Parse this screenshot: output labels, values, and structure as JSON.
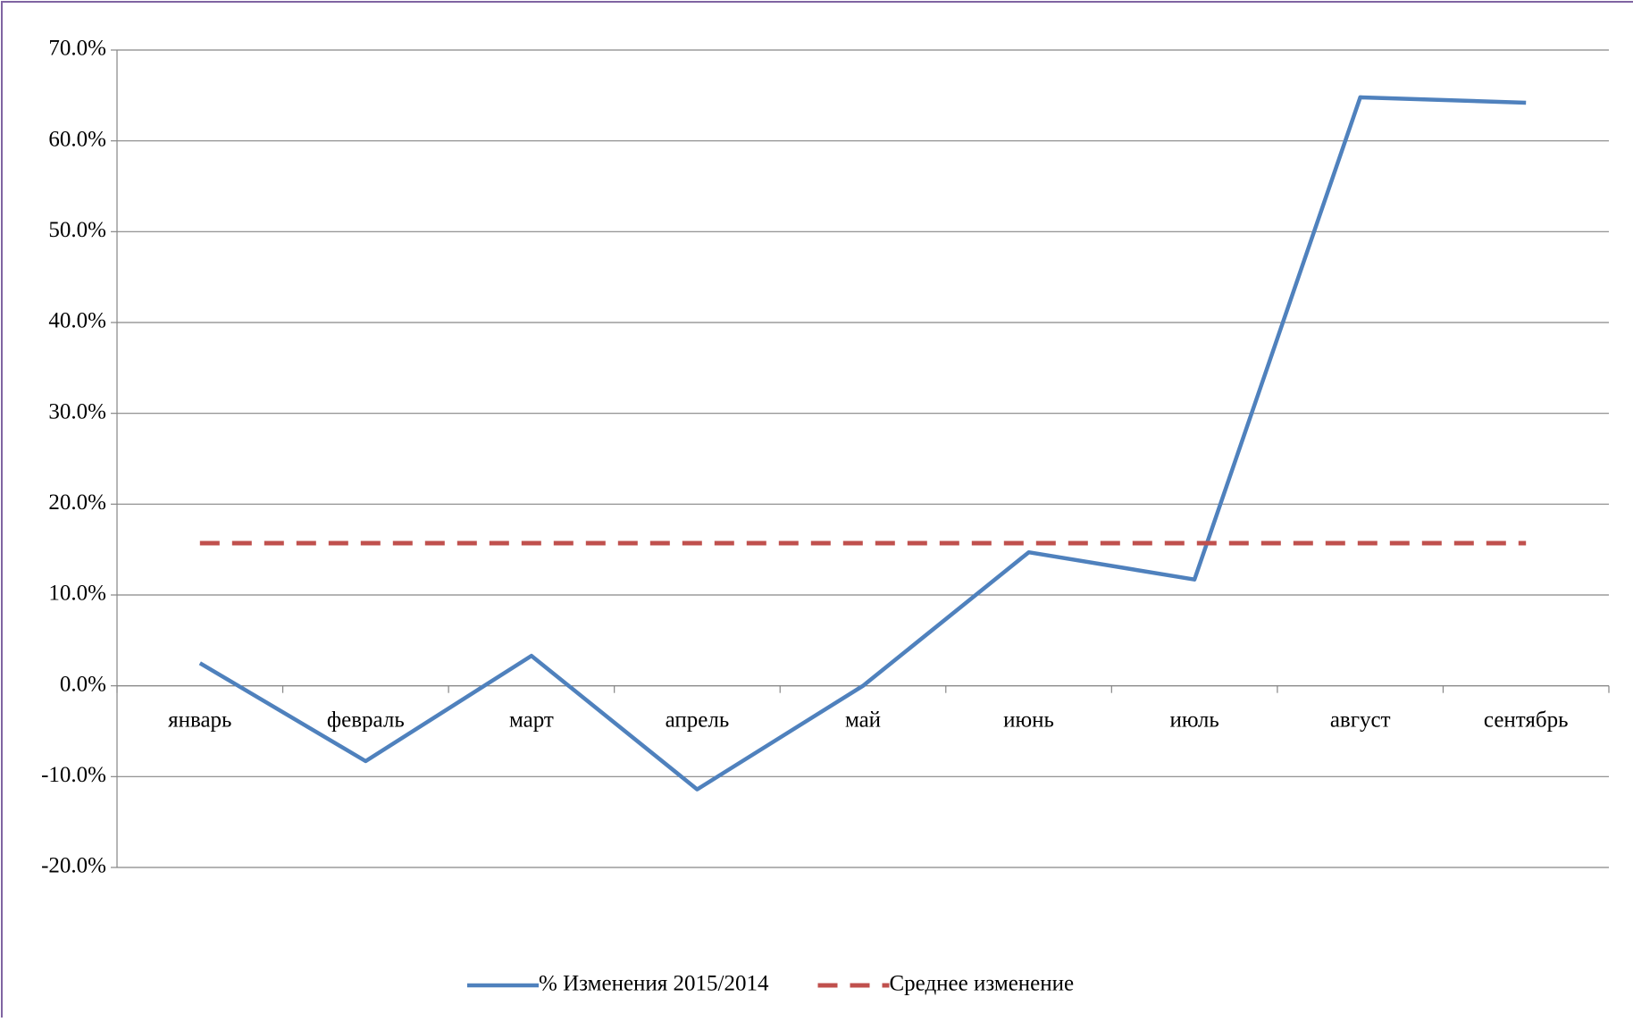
{
  "chart_data": {
    "type": "line",
    "categories": [
      "январь",
      "февраль",
      "март",
      "апрель",
      "май",
      "июнь",
      "июль",
      "август",
      "сентябрь"
    ],
    "series": [
      {
        "name": "% Изменения 2015/2014",
        "color": "#4f81bd",
        "values": [
          2.5,
          -8.3,
          3.3,
          -11.4,
          0.0,
          14.7,
          11.7,
          64.8,
          64.2
        ]
      },
      {
        "name": "Среднее изменение",
        "color": "#c0504d",
        "dashed": true,
        "values": [
          15.7,
          15.7,
          15.7,
          15.7,
          15.7,
          15.7,
          15.7,
          15.7,
          15.7
        ]
      }
    ],
    "ylim": [
      -20,
      70
    ],
    "yticks": [
      {
        "value": -20,
        "label": "-20.0%"
      },
      {
        "value": -10,
        "label": "-10.0%"
      },
      {
        "value": 0,
        "label": "0.0%"
      },
      {
        "value": 10,
        "label": "10.0%"
      },
      {
        "value": 20,
        "label": "20.0%"
      },
      {
        "value": 30,
        "label": "30.0%"
      },
      {
        "value": 40,
        "label": "40.0%"
      },
      {
        "value": 50,
        "label": "50.0%"
      },
      {
        "value": 60,
        "label": "60.0%"
      },
      {
        "value": 70,
        "label": "70.0%"
      }
    ],
    "grid": true,
    "legend": "bottom"
  }
}
